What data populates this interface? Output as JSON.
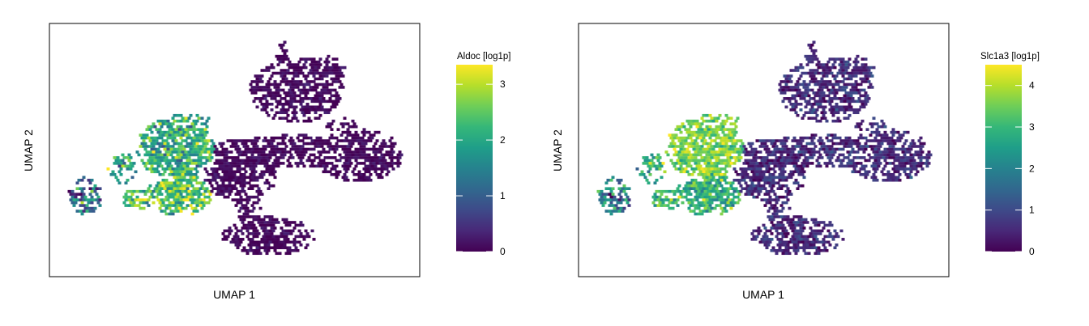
{
  "chart_data": [
    {
      "type": "scatter",
      "subtype": "hexbin-embedding",
      "xlabel": "UMAP 1",
      "ylabel": "UMAP 2",
      "legend": {
        "title": "Aldoc [log1p]",
        "placement": "right",
        "colormap": "viridis",
        "range": [
          0,
          3.35
        ],
        "ticks": [
          "0",
          "1",
          "2",
          "3"
        ],
        "tick_values": [
          0,
          1,
          2,
          3
        ]
      },
      "grid": false,
      "axis_ticks": false
    },
    {
      "type": "scatter",
      "subtype": "hexbin-embedding",
      "xlabel": "UMAP 1",
      "ylabel": "UMAP 2",
      "legend": {
        "title": "Slc1a3 [log1p]",
        "placement": "right",
        "colormap": "viridis",
        "range": [
          0,
          4.5
        ],
        "ticks": [
          "0",
          "1",
          "2",
          "3",
          "4"
        ],
        "tick_values": [
          0,
          1,
          2,
          3,
          4
        ]
      },
      "grid": false,
      "axis_ticks": false
    }
  ],
  "colors": {
    "viridis": [
      "#440154",
      "#482878",
      "#3e4a89",
      "#31688e",
      "#26828e",
      "#1f9e89",
      "#35b779",
      "#6ece58",
      "#b5de2b",
      "#fde725"
    ]
  }
}
